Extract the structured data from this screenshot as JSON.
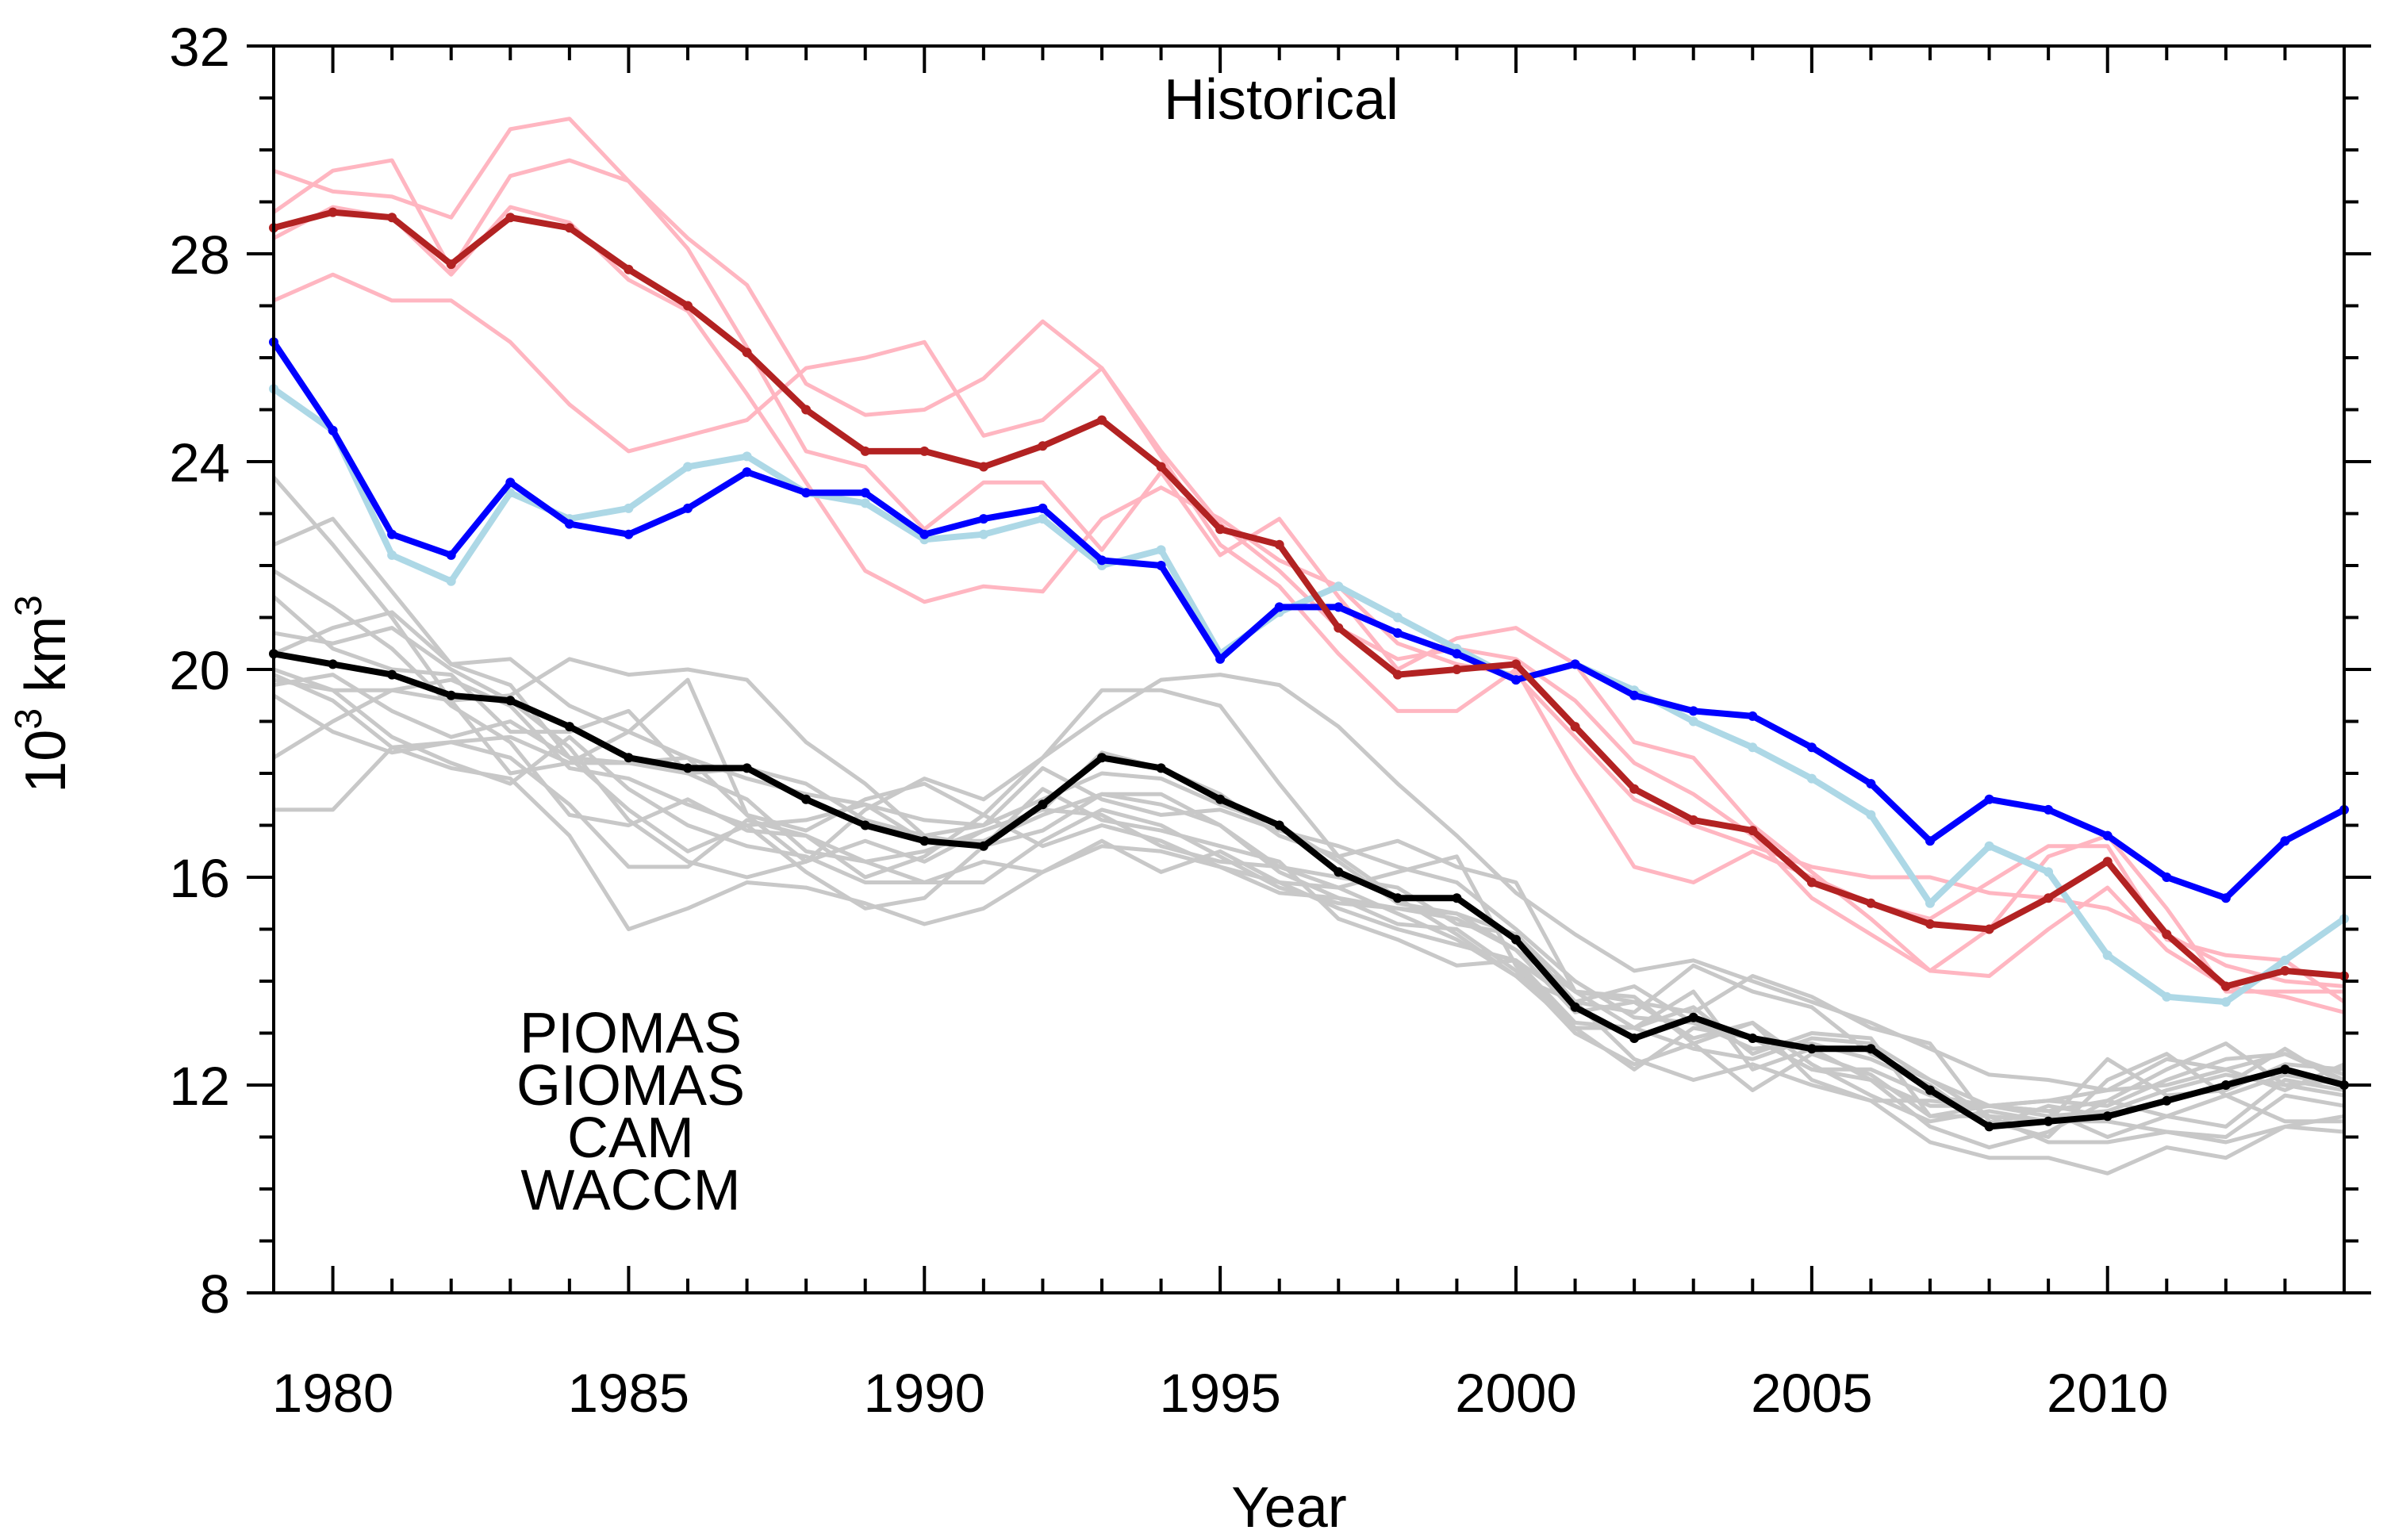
{
  "chart_data": {
    "type": "line",
    "title": "Historical",
    "xlabel": "Year",
    "ylabel_base": "10",
    "ylabel_sup1": "3",
    "ylabel_unit": " km",
    "ylabel_sup2": "3",
    "xlim": [
      1979,
      2014
    ],
    "ylim": [
      8,
      32
    ],
    "xticks": [
      1980,
      1985,
      1990,
      1995,
      2000,
      2005,
      2010
    ],
    "yticks": [
      8,
      12,
      16,
      20,
      24,
      28,
      32
    ],
    "legend_position": "bottom-left",
    "x": [
      1979,
      1980,
      1981,
      1982,
      1983,
      1984,
      1985,
      1986,
      1987,
      1988,
      1989,
      1990,
      1991,
      1992,
      1993,
      1994,
      1995,
      1996,
      1997,
      1998,
      1999,
      2000,
      2001,
      2002,
      2003,
      2004,
      2005,
      2006,
      2007,
      2008,
      2009,
      2010,
      2011,
      2012,
      2013,
      2014
    ],
    "series": [
      {
        "name": "PIOMAS",
        "color": "#add8e6",
        "values": [
          25.4,
          24.6,
          22.2,
          21.7,
          23.4,
          22.9,
          23.1,
          23.9,
          24.1,
          23.4,
          23.2,
          22.5,
          22.6,
          22.9,
          22.0,
          22.3,
          20.3,
          21.1,
          21.6,
          21.0,
          20.4,
          19.8,
          20.1,
          19.6,
          19.0,
          18.5,
          17.9,
          17.2,
          15.5,
          16.6,
          16.1,
          14.5,
          13.7,
          13.6,
          14.4,
          15.2
        ]
      },
      {
        "name": "GIOMAS",
        "color": "#0000ff",
        "values": [
          26.3,
          24.6,
          22.6,
          22.2,
          23.6,
          22.8,
          22.6,
          23.1,
          23.8,
          23.4,
          23.4,
          22.6,
          22.9,
          23.1,
          22.1,
          22.0,
          20.2,
          21.2,
          21.2,
          20.7,
          20.3,
          19.8,
          20.1,
          19.5,
          19.2,
          19.1,
          18.5,
          17.8,
          16.7,
          17.5,
          17.3,
          16.8,
          16.0,
          15.6,
          16.7,
          17.3
        ]
      },
      {
        "name": "CAM",
        "color": "#000000",
        "values": [
          20.3,
          20.1,
          19.9,
          19.5,
          19.4,
          18.9,
          18.3,
          18.1,
          18.1,
          17.5,
          17.0,
          16.7,
          16.6,
          17.4,
          18.3,
          18.1,
          17.5,
          17.0,
          16.1,
          15.6,
          15.6,
          14.8,
          13.5,
          12.9,
          13.3,
          12.9,
          12.7,
          12.7,
          11.9,
          11.2,
          11.3,
          11.4,
          11.7,
          12.0,
          12.3,
          12.0
        ]
      },
      {
        "name": "WACCM",
        "color": "#b22222",
        "values": [
          28.5,
          28.8,
          28.7,
          27.8,
          28.7,
          28.5,
          27.7,
          27.0,
          26.1,
          25.0,
          24.2,
          24.2,
          23.9,
          24.3,
          24.8,
          23.9,
          22.7,
          22.4,
          20.8,
          19.9,
          20.0,
          20.1,
          18.9,
          17.7,
          17.1,
          16.9,
          15.9,
          15.5,
          15.1,
          15.0,
          15.6,
          16.3,
          14.9,
          13.9,
          14.2,
          14.1
        ]
      }
    ],
    "ensemble_members": [
      {
        "group": "WACCM",
        "color": "#ffb6c1",
        "values": [
          29.6,
          29.2,
          29.1,
          28.7,
          30.4,
          30.6,
          29.4,
          28.3,
          27.4,
          25.5,
          24.9,
          25.0,
          25.6,
          26.7,
          25.8,
          24.1,
          22.4,
          21.6,
          20.3,
          19.2,
          19.2,
          20.0,
          18.0,
          16.2,
          15.9,
          16.5,
          16.0,
          15.5,
          15.2,
          15.9,
          16.6,
          16.6,
          14.8,
          14.5,
          14.4,
          13.6
        ]
      },
      {
        "group": "WACCM",
        "color": "#ffb6c1",
        "values": [
          28.8,
          29.6,
          29.8,
          27.7,
          29.5,
          29.8,
          29.4,
          28.1,
          26.2,
          24.2,
          23.9,
          22.7,
          23.6,
          23.6,
          22.3,
          23.8,
          22.2,
          22.9,
          21.4,
          20.0,
          20.6,
          20.8,
          20.1,
          18.6,
          18.3,
          17.0,
          16.1,
          15.2,
          14.2,
          15.0,
          16.4,
          16.8,
          15.4,
          13.8,
          13.8,
          13.8
        ]
      },
      {
        "group": "WACCM",
        "color": "#ffb6c1",
        "values": [
          27.1,
          27.6,
          27.1,
          27.1,
          26.3,
          25.1,
          24.2,
          24.5,
          24.8,
          25.8,
          26.0,
          26.3,
          24.5,
          24.8,
          25.8,
          24.2,
          22.8,
          21.9,
          20.8,
          20.2,
          20.4,
          20.2,
          19.4,
          18.2,
          17.6,
          16.8,
          15.6,
          14.9,
          14.2,
          14.1,
          15.0,
          15.8,
          14.6,
          13.9,
          13.7,
          13.4
        ]
      },
      {
        "group": "WACCM",
        "color": "#ffb6c1",
        "values": [
          28.3,
          28.9,
          28.7,
          27.6,
          28.9,
          28.6,
          27.5,
          26.9,
          25.3,
          23.6,
          21.9,
          21.3,
          21.6,
          21.5,
          22.9,
          23.5,
          22.9,
          22.1,
          21.6,
          20.5,
          20.1,
          19.9,
          18.7,
          17.5,
          17.0,
          16.6,
          16.2,
          16.0,
          16.0,
          15.7,
          15.6,
          15.4,
          14.9,
          14.3,
          14.0,
          13.9
        ]
      },
      {
        "group": "CAM",
        "color": "#c8c8c8",
        "values": [
          23.7,
          22.4,
          21.0,
          19.4,
          18.0,
          18.2,
          18.8,
          19.8,
          17.2,
          16.3,
          16.7,
          16.3,
          16.9,
          17.3,
          18.4,
          18.1,
          17.6,
          16.8,
          16.4,
          16.7,
          16.2,
          15.9,
          13.8,
          13.6,
          13.4,
          14.1,
          13.7,
          13.1,
          12.8,
          11.3,
          11.0,
          12.1,
          12.6,
          11.8,
          12.2,
          12.0
        ]
      },
      {
        "group": "CAM",
        "color": "#c8c8c8",
        "values": [
          22.4,
          22.9,
          21.5,
          20.1,
          19.7,
          18.3,
          17.3,
          16.5,
          17.0,
          16.1,
          15.4,
          15.6,
          16.6,
          17.7,
          17.1,
          16.9,
          16.6,
          16.3,
          15.2,
          14.8,
          14.3,
          14.4,
          13.6,
          13.4,
          14.3,
          13.8,
          13.5,
          12.6,
          12.1,
          11.4,
          11.3,
          12.5,
          11.8,
          11.9,
          12.4,
          12.3
        ]
      },
      {
        "group": "CAM",
        "color": "#c8c8c8",
        "values": [
          21.9,
          21.2,
          20.4,
          19.3,
          18.6,
          17.2,
          17.0,
          17.5,
          16.9,
          16.8,
          16.0,
          16.4,
          17.2,
          16.6,
          17.0,
          16.7,
          16.2,
          15.9,
          15.8,
          16.1,
          16.4,
          14.3,
          13.1,
          13.1,
          13.8,
          12.3,
          12.7,
          12.1,
          11.6,
          11.6,
          11.7,
          11.6,
          12.1,
          12.5,
          12.6,
          12.1
        ]
      },
      {
        "group": "CAM",
        "color": "#c8c8c8",
        "values": [
          20.7,
          20.5,
          20.8,
          20.0,
          19.4,
          18.5,
          17.1,
          16.3,
          16.0,
          16.3,
          17.3,
          17.9,
          17.5,
          18.3,
          19.6,
          19.6,
          19.3,
          17.8,
          16.4,
          15.6,
          14.9,
          14.1,
          13.1,
          12.3,
          13.1,
          12.9,
          12.3,
          12.1,
          11.2,
          10.8,
          11.1,
          11.7,
          12.3,
          12.8,
          12.0,
          11.8
        ]
      },
      {
        "group": "CAM",
        "color": "#c8c8c8",
        "values": [
          20.3,
          20.8,
          21.1,
          20.1,
          20.2,
          19.3,
          18.8,
          18.3,
          17.2,
          16.9,
          17.5,
          17.8,
          17.2,
          18.3,
          19.1,
          19.8,
          19.9,
          19.7,
          18.9,
          17.8,
          16.8,
          15.7,
          14.9,
          14.2,
          14.4,
          14.0,
          13.6,
          13.2,
          12.7,
          12.2,
          12.1,
          11.9,
          12.0,
          12.3,
          12.6,
          12.2
        ]
      },
      {
        "group": "CAM",
        "color": "#c8c8c8",
        "values": [
          19.9,
          19.4,
          18.5,
          18.1,
          17.9,
          16.8,
          15.0,
          15.4,
          15.9,
          15.8,
          15.5,
          15.1,
          15.4,
          16.1,
          16.7,
          16.1,
          16.5,
          15.9,
          15.4,
          15.0,
          14.7,
          14.4,
          13.2,
          13.1,
          13.5,
          12.6,
          13.0,
          12.9,
          11.4,
          11.6,
          11.5,
          11.0,
          11.4,
          11.2,
          12.1,
          11.9
        ]
      },
      {
        "group": "CAM",
        "color": "#c8c8c8",
        "values": [
          19.8,
          19.6,
          18.7,
          18.2,
          17.8,
          18.7,
          17.7,
          17.0,
          16.6,
          16.4,
          15.9,
          15.9,
          16.3,
          16.1,
          16.6,
          16.5,
          16.2,
          15.7,
          15.6,
          15.4,
          15.3,
          14.6,
          13.4,
          13.6,
          12.9,
          13.2,
          12.1,
          11.7,
          10.9,
          10.6,
          10.6,
          10.3,
          10.8,
          10.6,
          11.2,
          11.4
        ]
      },
      {
        "group": "CAM",
        "color": "#c8c8c8",
        "values": [
          19.5,
          18.8,
          18.4,
          18.6,
          18.3,
          17.4,
          16.2,
          16.2,
          17.1,
          16.8,
          16.3,
          15.9,
          15.9,
          16.7,
          17.3,
          17.0,
          16.4,
          15.8,
          15.5,
          15.4,
          15.2,
          14.6,
          13.8,
          13.7,
          12.8,
          11.9,
          12.6,
          12.2,
          11.4,
          11.4,
          10.9,
          10.9,
          11.1,
          11.0,
          11.8,
          11.6
        ]
      },
      {
        "group": "CAM",
        "color": "#c8c8c8",
        "values": [
          18.3,
          19.0,
          19.6,
          19.8,
          19.3,
          18.1,
          17.9,
          17.4,
          17.0,
          17.1,
          17.4,
          16.7,
          16.7,
          17.2,
          17.6,
          17.4,
          17.0,
          16.1,
          15.6,
          15.1,
          15.0,
          14.2,
          13.0,
          12.4,
          12.8,
          13.2,
          12.4,
          11.8,
          11.3,
          11.5,
          11.3,
          11.3,
          11.1,
          10.9,
          11.2,
          11.1
        ]
      },
      {
        "group": "CAM",
        "color": "#c8c8c8",
        "values": [
          17.3,
          17.3,
          18.5,
          18.6,
          18.7,
          18.2,
          18.2,
          18.0,
          17.5,
          16.5,
          16.3,
          16.5,
          16.9,
          17.3,
          17.2,
          16.6,
          16.3,
          16.2,
          15.8,
          15.3,
          14.8,
          14.1,
          13.6,
          12.5,
          12.1,
          12.4,
          12.0,
          11.7,
          11.7,
          11.6,
          11.5,
          11.7,
          11.4,
          11.8,
          11.3,
          11.3
        ]
      },
      {
        "group": "CAM",
        "color": "#c8c8c8",
        "values": [
          20.0,
          19.6,
          19.6,
          19.4,
          19.5,
          20.2,
          19.9,
          20.0,
          19.8,
          18.6,
          17.8,
          16.8,
          17.0,
          18.1,
          17.5,
          17.2,
          17.3,
          16.9,
          16.6,
          16.2,
          15.9,
          15.0,
          14.0,
          13.3,
          13.2,
          12.9,
          12.3,
          12.3,
          11.8,
          11.6,
          11.7,
          11.9,
          12.5,
          12.3,
          11.9,
          12.4
        ]
      },
      {
        "group": "CAM",
        "color": "#c8c8c8",
        "values": [
          21.4,
          20.4,
          20.0,
          19.9,
          18.8,
          18.8,
          19.2,
          18.0,
          18.1,
          17.8,
          17.1,
          16.8,
          16.6,
          16.9,
          17.6,
          17.6,
          17.0,
          16.2,
          16.0,
          15.8,
          15.1,
          14.9,
          13.6,
          13.9,
          13.2,
          12.7,
          12.8,
          12.5,
          12.0,
          11.2,
          11.6,
          11.4,
          11.7,
          12.0,
          12.7,
          12.0
        ]
      },
      {
        "group": "CAM",
        "color": "#c8c8c8",
        "values": [
          19.7,
          19.9,
          19.2,
          18.7,
          19.0,
          18.3,
          18.2,
          18.3,
          17.9,
          17.6,
          17.4,
          17.1,
          17.0,
          17.5,
          18.0,
          17.9,
          17.4,
          17.0,
          16.3,
          15.5,
          15.3,
          14.9,
          13.8,
          13.1,
          12.7,
          12.5,
          12.9,
          12.8,
          12.1,
          11.6,
          11.4,
          11.5,
          11.9,
          12.2,
          12.0,
          12.1
        ]
      }
    ]
  }
}
